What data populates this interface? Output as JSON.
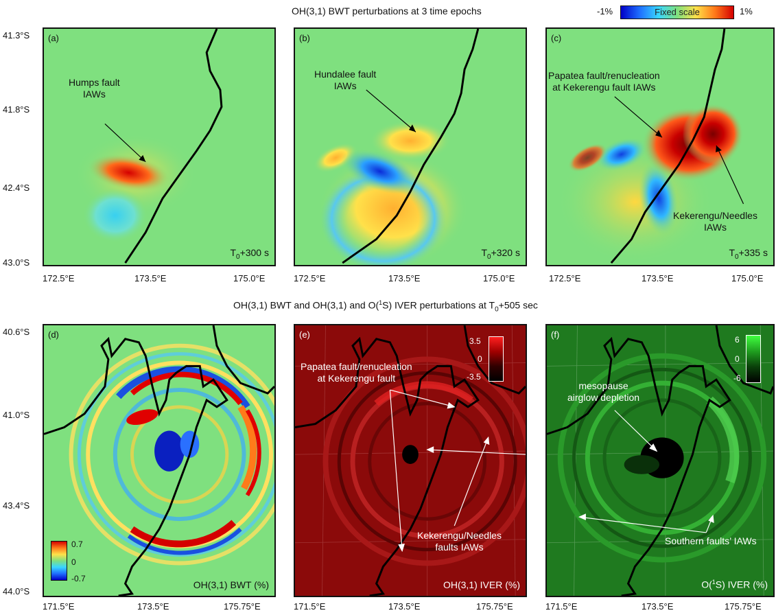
{
  "top_title": "OH(3,1) BWT perturbations at 3 time epochs",
  "top_colorbar": {
    "min_label": "-1%",
    "max_label": "1%",
    "mid_label": "Fixed scale"
  },
  "top_y_ticks": [
    "41.3°S",
    "41.8°S",
    "42.4°S",
    "43.0°S"
  ],
  "top_x_ticks": [
    "172.5°E",
    "173.5°E",
    "175.0°E"
  ],
  "panels_top": [
    {
      "label": "(a)",
      "time_prefix": "T",
      "time_sub": "0",
      "time_suffix": "+300 s",
      "annotations": [
        {
          "text": "Humps fault",
          "text2": "IAWs"
        }
      ]
    },
    {
      "label": "(b)",
      "time_prefix": "T",
      "time_sub": "0",
      "time_suffix": "+320 s",
      "annotations": [
        {
          "text": "Hundalee fault",
          "text2": "IAWs"
        }
      ]
    },
    {
      "label": "(c)",
      "time_prefix": "T",
      "time_sub": "0",
      "time_suffix": "+335 s",
      "annotations": [
        {
          "text": "Papatea fault/renucleation",
          "text2": "at Kekerengu fault IAWs"
        },
        {
          "text": "Kekerengu/Needles",
          "text2": "IAWs"
        }
      ]
    }
  ],
  "bottom_title": {
    "prefix": "OH(3,1) BWT and OH(3,1) and O(",
    "sup": "1",
    "middle": "S) IVER perturbations at T",
    "sub": "0",
    "suffix": "+505 sec"
  },
  "bottom_y_ticks": [
    "40.6°S",
    "41.0°S",
    "43.4°S",
    "44.0°S"
  ],
  "bottom_x_ticks": [
    "171.5°E",
    "173.5°E",
    "175.75°E"
  ],
  "panels_bottom": [
    {
      "label": "(d)",
      "units": "OH(3,1) BWT (%)",
      "colorbar": {
        "max": "0.7",
        "mid": "0",
        "min": "-0.7"
      }
    },
    {
      "label": "(e)",
      "units": "OH(3,1) IVER (%)",
      "colorbar": {
        "max": "3.5",
        "mid": "0",
        "min": "-3.5"
      },
      "annotations": [
        {
          "text": "Papatea fault/renucleation",
          "text2": "at Kekerengu fault"
        },
        {
          "text": "Kekerengu/Needles",
          "text2": "faults IAWs"
        }
      ]
    },
    {
      "label": "(f)",
      "units_prefix": "O(",
      "units_sup": "1",
      "units_suffix": "S) IVER (%)",
      "colorbar": {
        "max": "6",
        "mid": "0",
        "min": "-6"
      },
      "annotations": [
        {
          "text": "mesopause",
          "text2": "airglow depletion"
        },
        {
          "text": "Southern faults’ IAWs"
        }
      ]
    }
  ],
  "colors": {
    "background_field": "#7fe07f",
    "iver_red": "#8b0a0a",
    "iver_green": "#1f7a1f"
  }
}
